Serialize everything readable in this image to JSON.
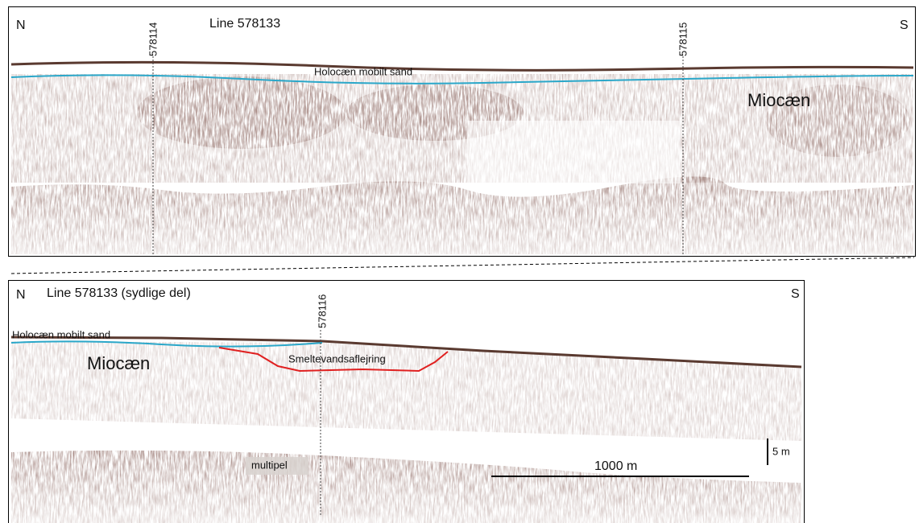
{
  "panels": [
    {
      "title": "Line 578133",
      "left": "N",
      "right": "S",
      "markers": [
        "578114",
        "578115"
      ],
      "labels": {
        "sand": "Holocæn mobilt sand",
        "unit": "Miocæn"
      }
    },
    {
      "title": "Line 578133 (sydlige del)",
      "left": "N",
      "right": "S",
      "markers": [
        "578116"
      ],
      "labels": {
        "sand": "Holocæn mobilt sand",
        "unit": "Miocæn",
        "channel": "Smeltevandsaflejring",
        "multiple": "multipel"
      },
      "scale": {
        "horizontal": "1000 m",
        "vertical": "5 m"
      }
    }
  ]
}
